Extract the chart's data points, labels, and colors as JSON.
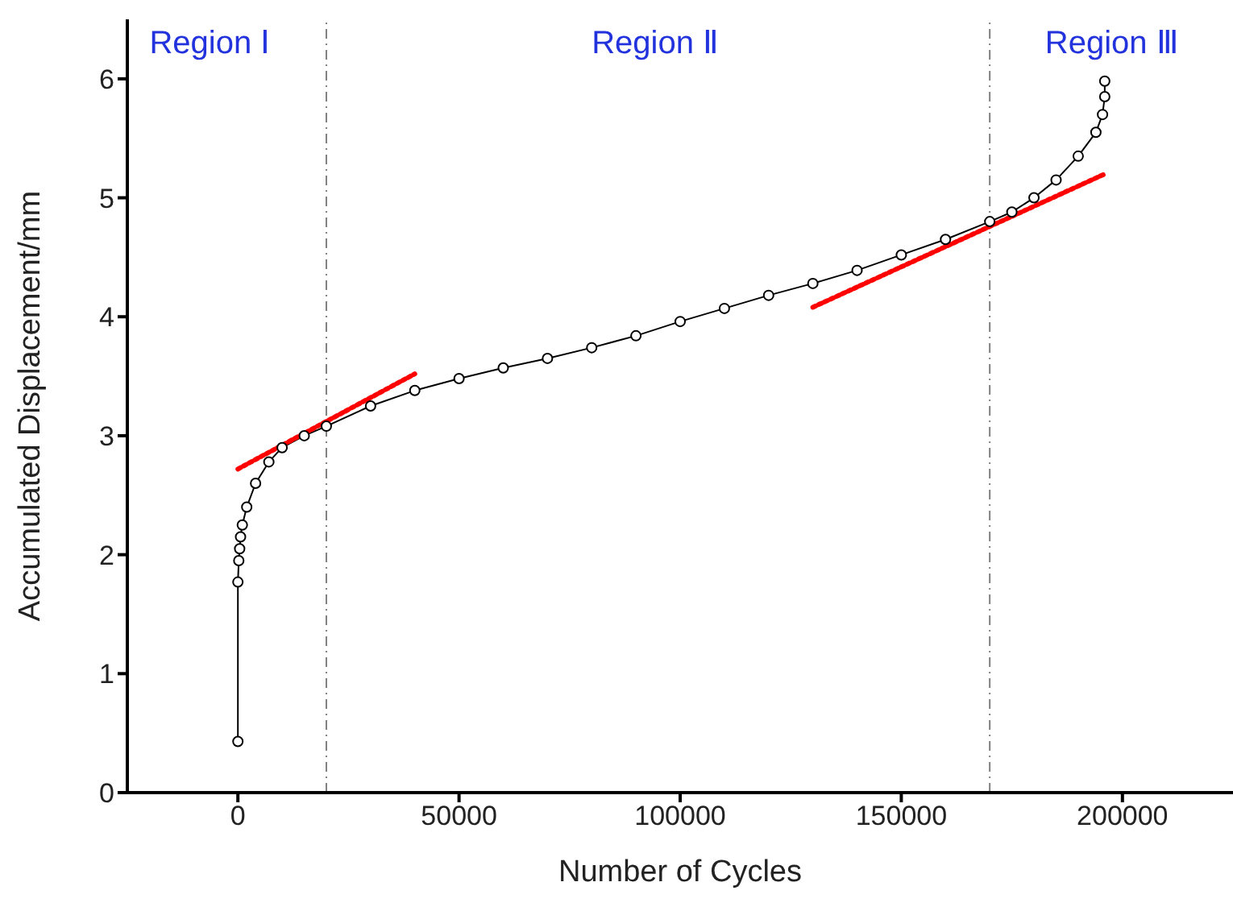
{
  "chart_data": {
    "type": "line",
    "xlabel": "Number of Cycles",
    "ylabel": "Accumulated Displacement/mm",
    "xlim": [
      -25000,
      225000
    ],
    "xticks": [
      0,
      50000,
      100000,
      150000,
      200000
    ],
    "ylim": [
      0,
      6.5
    ],
    "yticks": [
      0,
      1,
      2,
      3,
      4,
      5,
      6
    ],
    "series": [
      {
        "color": "#000000",
        "marker": "circle",
        "line_style": "solid",
        "x": [
          0,
          0,
          200,
          400,
          600,
          1000,
          2000,
          4000,
          7000,
          10000,
          15000,
          20000,
          30000,
          40000,
          50000,
          60000,
          70000,
          80000,
          90000,
          100000,
          110000,
          120000,
          130000,
          140000,
          150000,
          160000,
          170000,
          175000,
          180000,
          185000,
          190000,
          194000,
          195500,
          196000,
          196000
        ],
        "values": [
          0.43,
          1.77,
          1.95,
          2.05,
          2.15,
          2.25,
          2.4,
          2.6,
          2.78,
          2.9,
          3.0,
          3.08,
          3.25,
          3.38,
          3.48,
          3.57,
          3.65,
          3.74,
          3.84,
          3.96,
          4.07,
          4.18,
          4.28,
          4.39,
          4.52,
          4.65,
          4.8,
          4.88,
          5.0,
          5.15,
          5.35,
          5.55,
          5.7,
          5.85,
          5.98
        ]
      },
      {
        "color": "#ff0000",
        "marker": "none",
        "line_style": "dotted",
        "x": [
          0,
          40000
        ],
        "values": [
          2.72,
          3.52
        ]
      },
      {
        "color": "#ff0000",
        "marker": "none",
        "line_style": "dotted",
        "x": [
          130000,
          196000
        ],
        "values": [
          4.08,
          5.2
        ]
      }
    ],
    "ref_lines": [
      {
        "axis": "x",
        "value": 20000,
        "color": "#808080",
        "line_style": "dashed"
      },
      {
        "axis": "x",
        "value": 170000,
        "color": "#808080",
        "line_style": "dashed"
      }
    ],
    "annotations": [
      "Region Ⅰ",
      "Region Ⅱ",
      "Region Ⅲ"
    ]
  }
}
